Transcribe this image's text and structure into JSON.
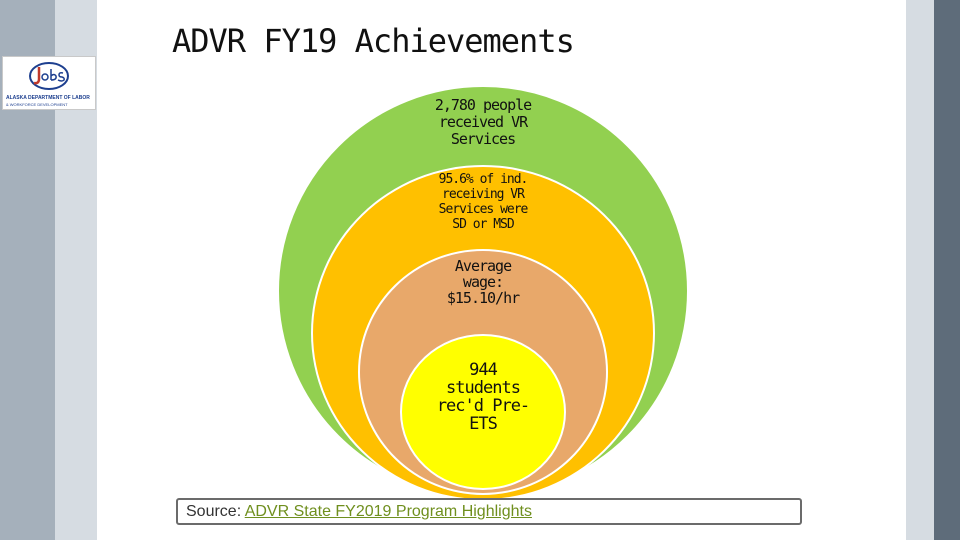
{
  "colors": {
    "outer_circle": "#92d050",
    "second_circle": "#ffc000",
    "third_circle": "#e8a86a",
    "inner_circle": "#ffff00",
    "link": "#6f8f1e",
    "side_dark": "#5e6c7a",
    "side_light": "#d6dce2"
  },
  "logo": {
    "icon": "alaska-jobs-logo",
    "line1": "ALASKA DEPARTMENT OF LABOR",
    "line2": "& WORKFORCE DEVELOPMENT"
  },
  "title": "ADVR FY19 Achievements",
  "circles": [
    {
      "lines": [
        "2,780 people",
        "received VR",
        "Services"
      ]
    },
    {
      "lines": [
        "95.6% of ind.",
        "receiving VR",
        "Services were",
        "SD or MSD"
      ]
    },
    {
      "lines": [
        "Average",
        "wage:",
        "$15.10/hr"
      ]
    },
    {
      "lines": [
        "944",
        "students",
        "rec'd Pre-",
        "ETS"
      ]
    }
  ],
  "source": {
    "prefix": "Source: ",
    "link_text": "ADVR State FY2019 Program Highlights"
  }
}
